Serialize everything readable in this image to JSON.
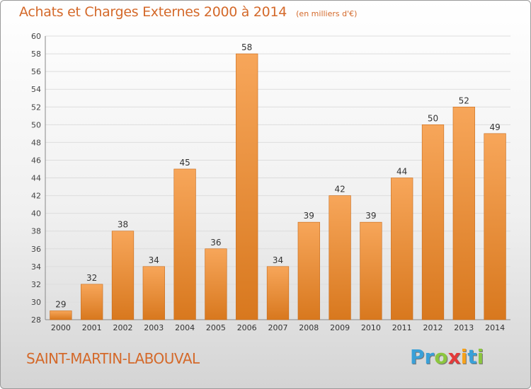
{
  "header": {
    "title": "Achats et Charges Externes 2000 à 2014",
    "unit": "(en milliers d'€)"
  },
  "footer": {
    "city": "SAINT-MARTIN-LABOUVAL",
    "logo": "Proxiti"
  },
  "colors": {
    "accent": "#d4692a",
    "bar_top": "#f7a65a",
    "bar_bottom": "#d8781e",
    "grid": "#dddddd",
    "logo_p": "#3aa0d8",
    "logo_r": "#3aa0d8",
    "logo_o": "#8cc63f",
    "logo_x": "#e43a3a",
    "logo_i": "#f7a21b",
    "logo_t": "#3aa0d8",
    "logo_i2": "#8cc63f"
  },
  "chart_data": {
    "type": "bar",
    "title": "Achats et Charges Externes 2000 à 2014",
    "subtitle": "(en milliers d'€)",
    "categories": [
      "2000",
      "2001",
      "2002",
      "2003",
      "2004",
      "2005",
      "2006",
      "2007",
      "2008",
      "2009",
      "2010",
      "2011",
      "2012",
      "2013",
      "2014"
    ],
    "values": [
      29,
      32,
      38,
      34,
      45,
      36,
      58,
      34,
      39,
      42,
      39,
      44,
      50,
      52,
      49
    ],
    "ylim": [
      28,
      60
    ],
    "yticks": [
      28,
      30,
      32,
      34,
      36,
      38,
      40,
      42,
      44,
      46,
      48,
      50,
      52,
      54,
      56,
      58,
      60
    ],
    "grid": true,
    "xlabel": "",
    "ylabel": ""
  }
}
